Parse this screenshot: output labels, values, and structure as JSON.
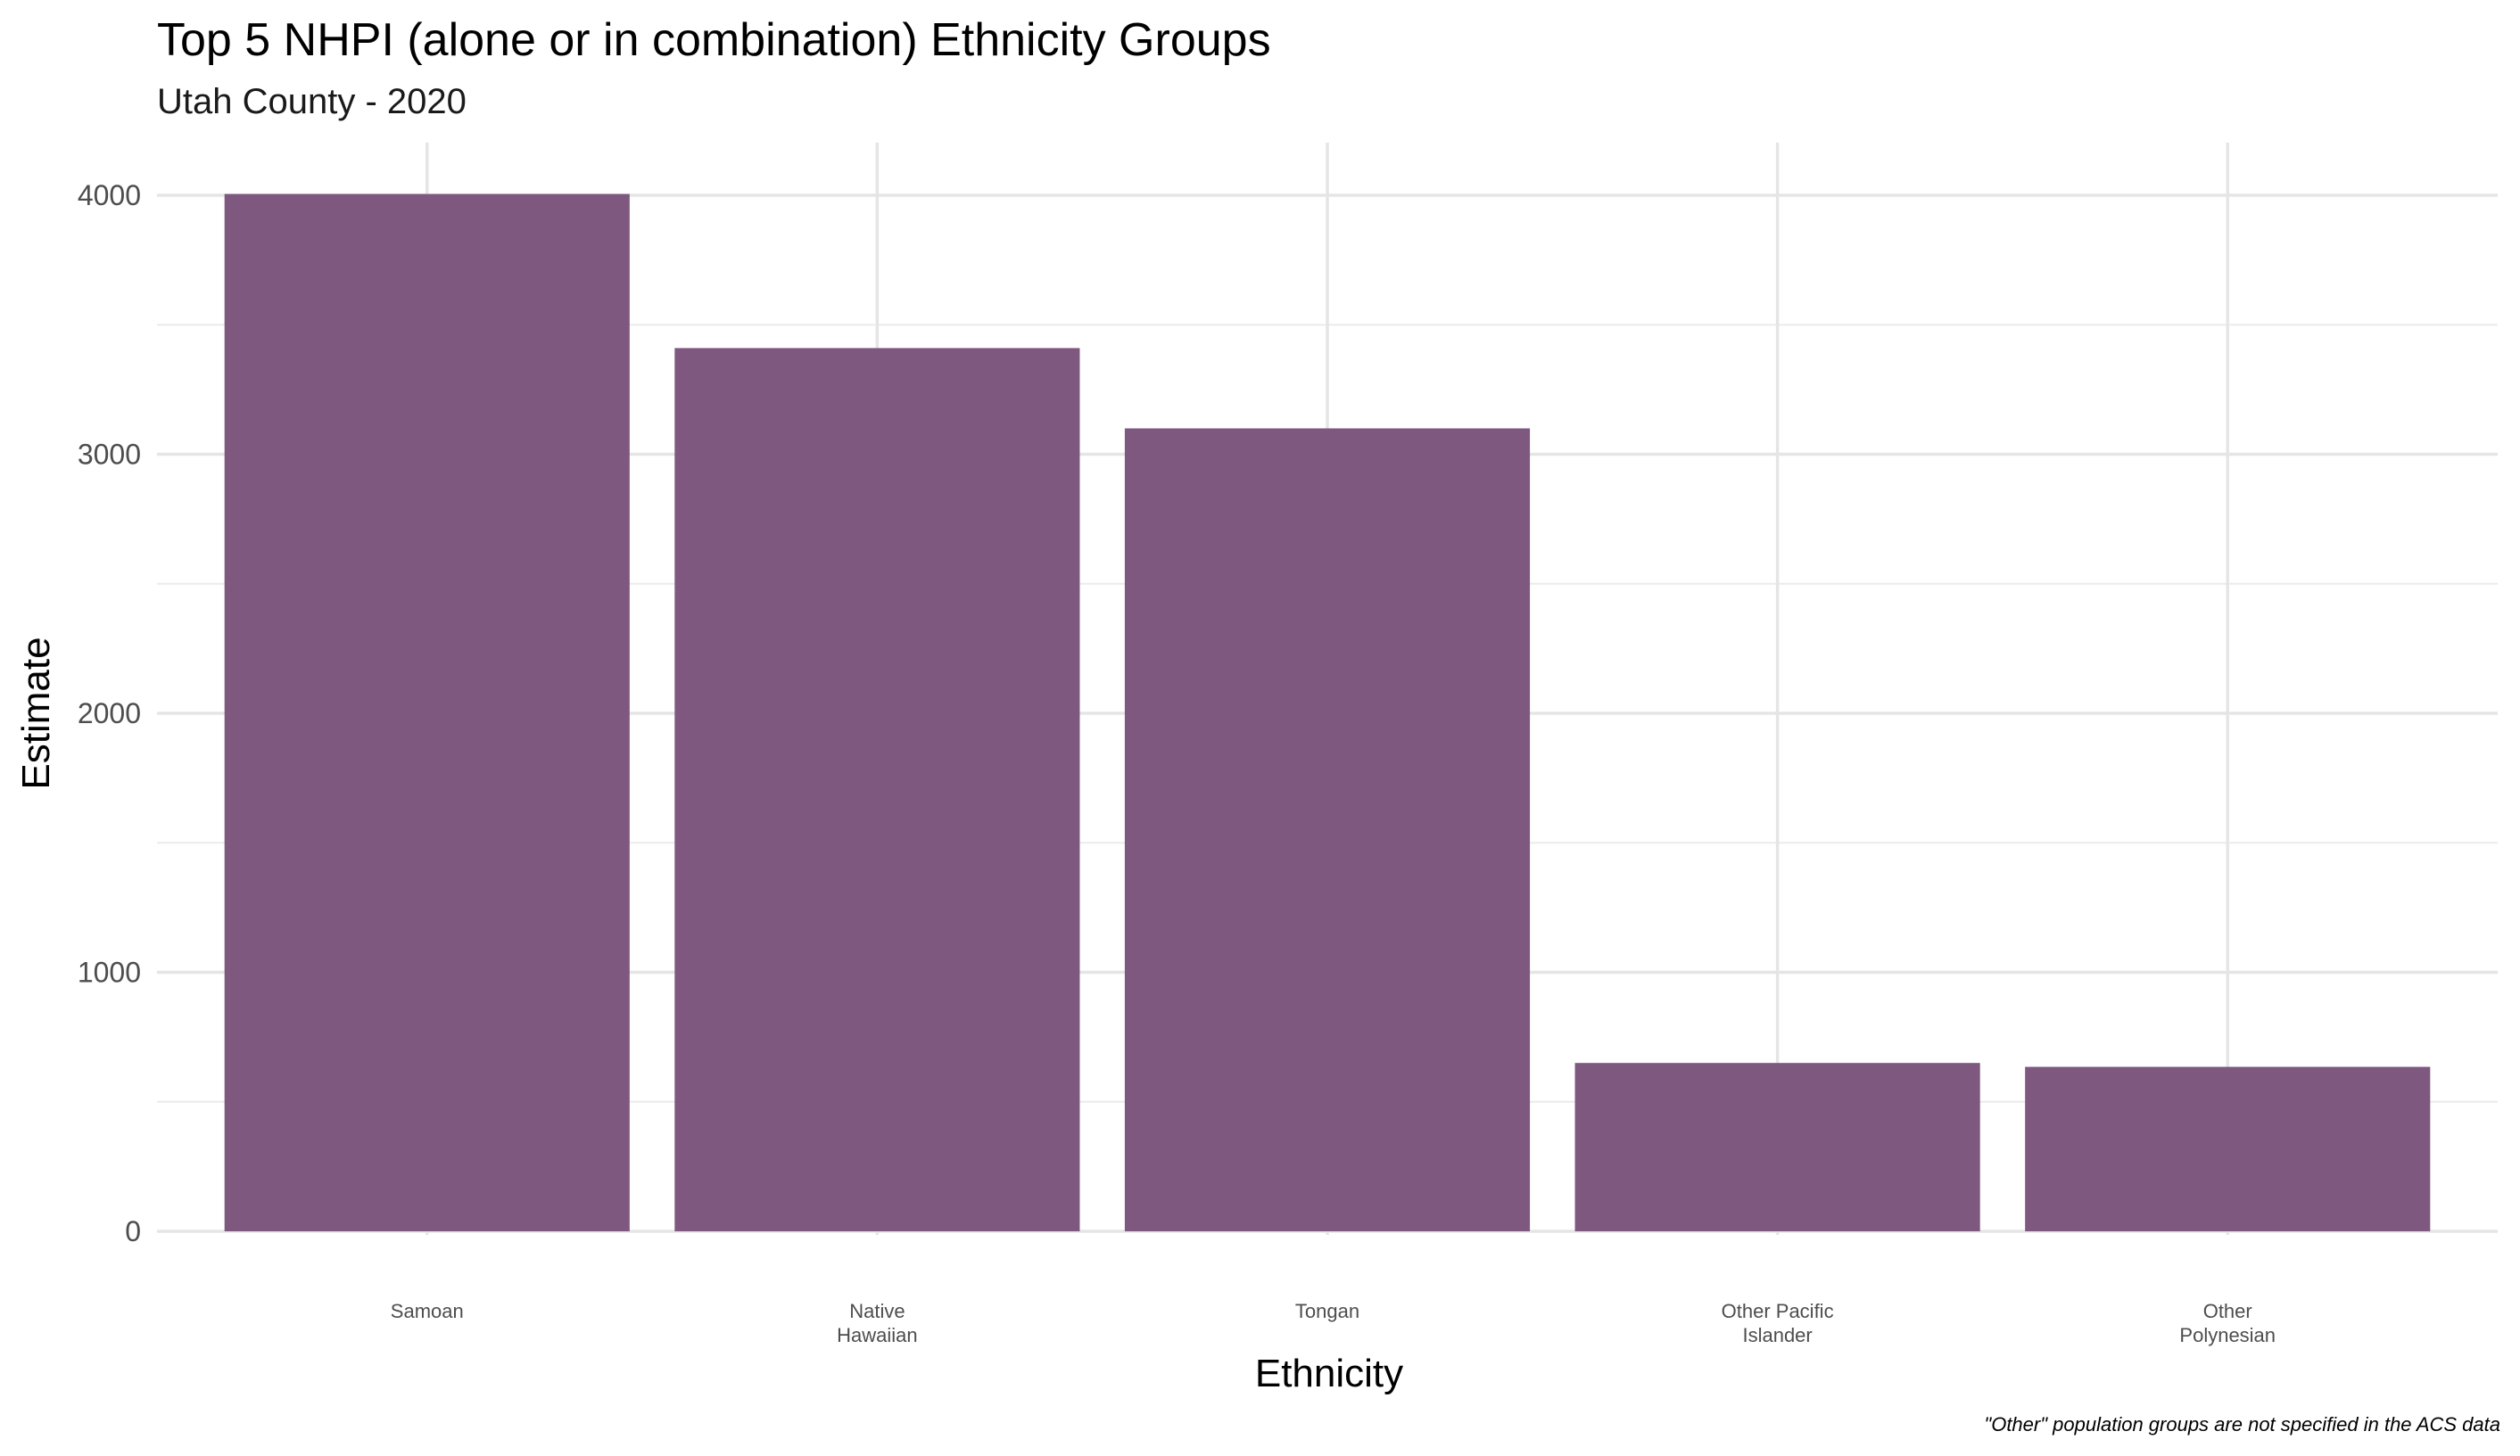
{
  "chart_data": {
    "type": "bar",
    "title": "Top 5 NHPI (alone or in combination) Ethnicity Groups",
    "subtitle": "Utah County - 2020",
    "xlabel": "Ethnicity",
    "ylabel": "Estimate",
    "caption": "\"Other\" population groups are not specified in the ACS data",
    "categories": [
      [
        "Samoan"
      ],
      [
        "Native",
        "Hawaiian"
      ],
      [
        "Tongan"
      ],
      [
        "Other Pacific",
        "Islander"
      ],
      [
        "Other",
        "Polynesian"
      ]
    ],
    "values": [
      4005,
      3410,
      3100,
      650,
      635
    ],
    "ylim": [
      0,
      4200
    ],
    "yticks": [
      0,
      1000,
      2000,
      3000,
      4000
    ],
    "grid": true,
    "bar_color": "#7f5880"
  }
}
